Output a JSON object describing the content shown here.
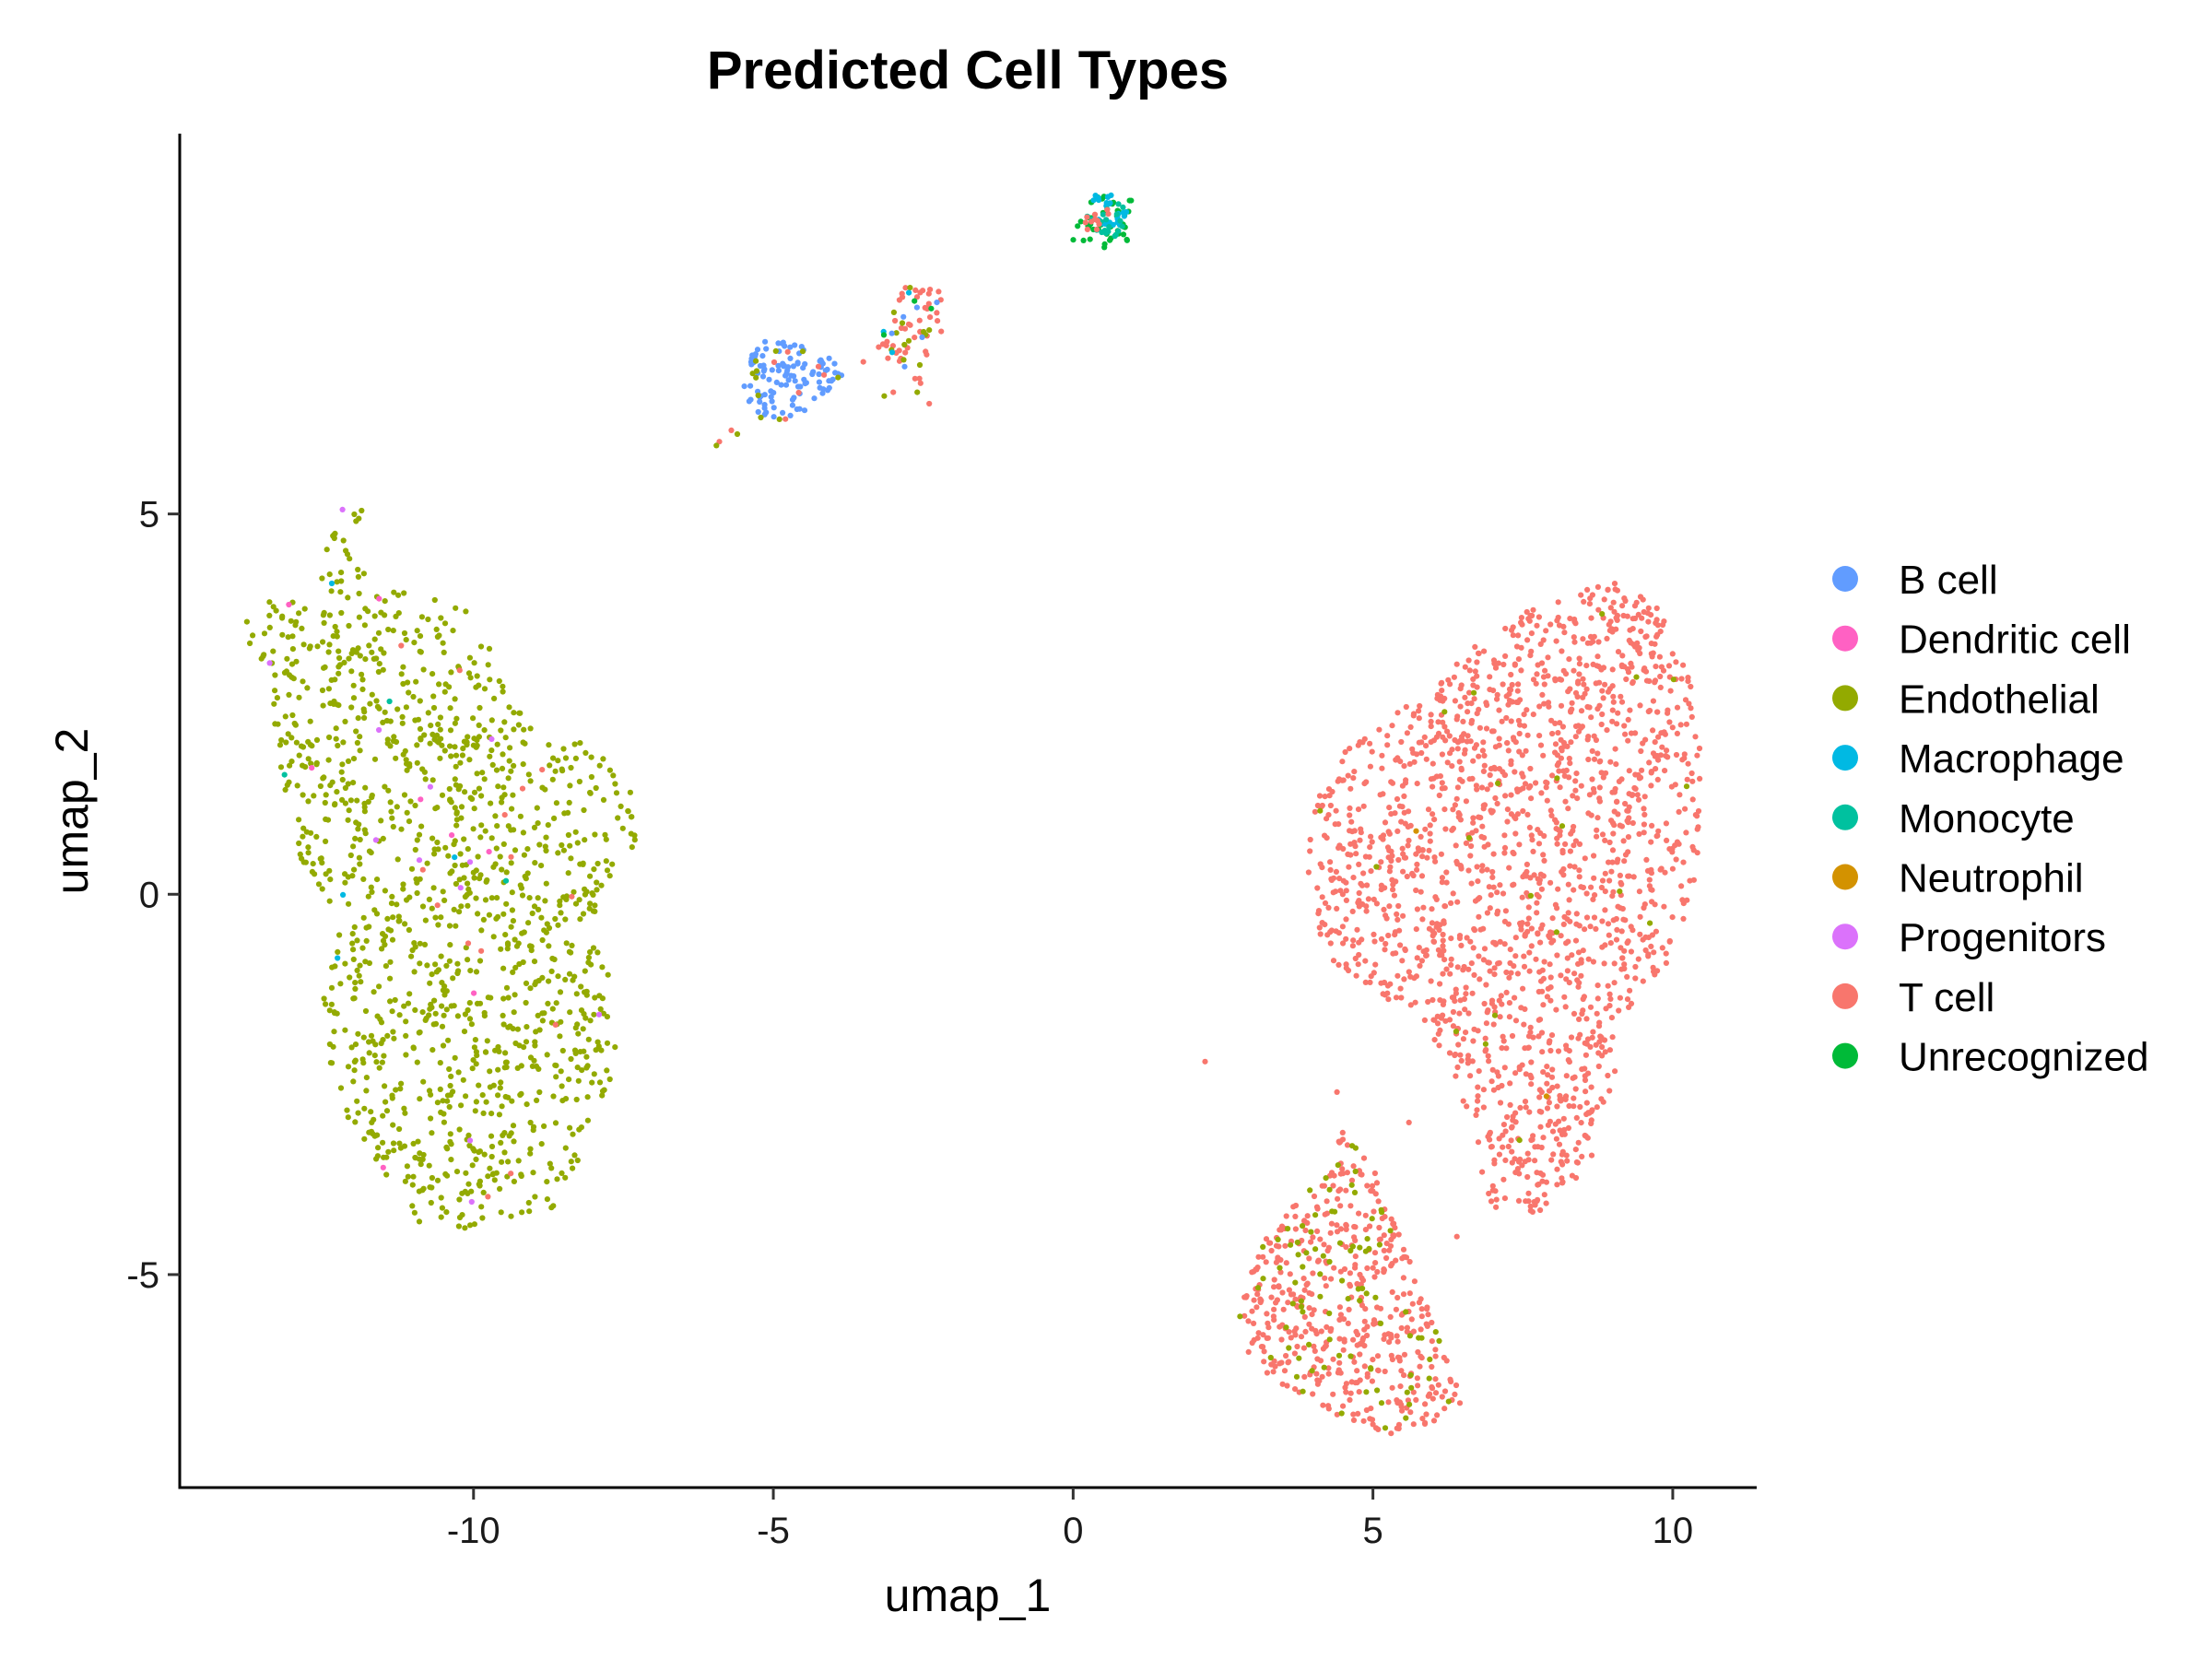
{
  "chart_data": {
    "type": "scatter",
    "title": "Predicted Cell Types",
    "xlabel": "umap_1",
    "ylabel": "umap_2",
    "xlim": [
      -14.9,
      11.4
    ],
    "ylim": [
      -7.8,
      10.0
    ],
    "x_ticks": [
      -10,
      -5,
      0,
      5,
      10
    ],
    "y_ticks": [
      -5,
      0,
      5
    ],
    "x_tick_labels": [
      "-10",
      "-5",
      "0",
      "5",
      "10"
    ],
    "y_tick_labels": [
      "-5",
      "0",
      "5"
    ],
    "grid": false,
    "legend_position": "right",
    "series": [
      {
        "name": "B cell",
        "color": "#619CFF"
      },
      {
        "name": "Dendritic cell",
        "color": "#FF61C3"
      },
      {
        "name": "Endothelial",
        "color": "#93AA00"
      },
      {
        "name": "Macrophage",
        "color": "#00B9E3"
      },
      {
        "name": "Monocyte",
        "color": "#00C19F"
      },
      {
        "name": "Neutrophil",
        "color": "#D39200"
      },
      {
        "name": "Progenitors",
        "color": "#DB72FB"
      },
      {
        "name": "T cell",
        "color": "#F8766D"
      },
      {
        "name": "Unrecognized",
        "color": "#00BA38"
      }
    ],
    "clusters": [
      {
        "series": "Endothelial",
        "n": 1300,
        "poly": [
          [
            -12.2,
            5.3
          ],
          [
            -11.8,
            5.1
          ],
          [
            -11.9,
            4.3
          ],
          [
            -11.4,
            4.0
          ],
          [
            -10.8,
            3.9
          ],
          [
            -10.1,
            3.8
          ],
          [
            -9.7,
            3.3
          ],
          [
            -9.3,
            2.5
          ],
          [
            -8.8,
            2.0
          ],
          [
            -8.0,
            2.0
          ],
          [
            -7.3,
            1.3
          ],
          [
            -7.3,
            0.6
          ],
          [
            -7.9,
            -0.1
          ],
          [
            -7.7,
            -1.0
          ],
          [
            -7.6,
            -2.2
          ],
          [
            -8.2,
            -3.4
          ],
          [
            -8.6,
            -4.1
          ],
          [
            -9.3,
            -4.3
          ],
          [
            -10.2,
            -4.4
          ],
          [
            -11.0,
            -4.3
          ],
          [
            -11.5,
            -3.8
          ],
          [
            -12.0,
            -3.2
          ],
          [
            -12.4,
            -2.2
          ],
          [
            -12.5,
            -1.4
          ],
          [
            -12.2,
            -0.3
          ],
          [
            -13.0,
            0.5
          ],
          [
            -13.2,
            1.4
          ],
          [
            -13.4,
            2.8
          ],
          [
            -13.9,
            3.4
          ],
          [
            -13.7,
            3.8
          ],
          [
            -13.0,
            3.9
          ],
          [
            -12.4,
            3.8
          ],
          [
            -12.6,
            4.3
          ]
        ]
      },
      {
        "series": "T cell",
        "n": 1750,
        "poly": [
          [
            8.5,
            4.1
          ],
          [
            9.4,
            4.1
          ],
          [
            10.0,
            3.5
          ],
          [
            10.4,
            2.5
          ],
          [
            10.5,
            1.3
          ],
          [
            10.4,
            0.2
          ],
          [
            10.0,
            -0.8
          ],
          [
            9.2,
            -1.6
          ],
          [
            9.0,
            -2.6
          ],
          [
            8.6,
            -3.6
          ],
          [
            7.8,
            -4.2
          ],
          [
            7.0,
            -4.2
          ],
          [
            6.7,
            -3.4
          ],
          [
            6.3,
            -2.3
          ],
          [
            5.8,
            -1.6
          ],
          [
            5.0,
            -1.3
          ],
          [
            4.2,
            -0.8
          ],
          [
            3.9,
            0.2
          ],
          [
            4.0,
            1.2
          ],
          [
            4.5,
            1.9
          ],
          [
            5.3,
            2.3
          ],
          [
            6.2,
            3.0
          ],
          [
            7.3,
            3.6
          ]
        ]
      },
      {
        "series": "T cell",
        "n": 480,
        "poly": [
          [
            4.5,
            -3.1
          ],
          [
            5.0,
            -3.5
          ],
          [
            5.4,
            -4.4
          ],
          [
            5.9,
            -5.4
          ],
          [
            6.2,
            -6.0
          ],
          [
            6.5,
            -6.7
          ],
          [
            6.0,
            -7.0
          ],
          [
            5.3,
            -7.1
          ],
          [
            4.5,
            -6.9
          ],
          [
            3.8,
            -6.6
          ],
          [
            3.0,
            -6.2
          ],
          [
            2.7,
            -5.7
          ],
          [
            2.9,
            -4.9
          ],
          [
            3.4,
            -4.3
          ],
          [
            4.0,
            -3.8
          ]
        ]
      },
      {
        "series": "B cell",
        "n": 110,
        "poly": [
          [
            -5.5,
            7.0
          ],
          [
            -5.1,
            7.3
          ],
          [
            -4.6,
            7.3
          ],
          [
            -4.1,
            7.1
          ],
          [
            -3.8,
            6.8
          ],
          [
            -4.2,
            6.5
          ],
          [
            -4.8,
            6.2
          ],
          [
            -5.2,
            6.2
          ],
          [
            -5.5,
            6.6
          ]
        ]
      },
      {
        "series": "T cell",
        "n": 45,
        "poly": [
          [
            -2.8,
            8.0
          ],
          [
            -2.3,
            8.2
          ],
          [
            -2.1,
            7.7
          ],
          [
            -2.5,
            6.9
          ],
          [
            -2.5,
            6.4
          ],
          [
            -3.0,
            6.9
          ],
          [
            -3.3,
            7.2
          ]
        ]
      },
      {
        "series": "Unrecognized",
        "n": 45,
        "poly": [
          [
            0.0,
            8.9
          ],
          [
            0.4,
            9.2
          ],
          [
            1.0,
            9.2
          ],
          [
            1.0,
            8.6
          ],
          [
            0.5,
            8.5
          ],
          [
            0.0,
            8.6
          ]
        ]
      },
      {
        "series": "Macrophage",
        "n": 25,
        "poly": [
          [
            0.3,
            9.2
          ],
          [
            0.9,
            9.2
          ],
          [
            0.9,
            8.8
          ],
          [
            0.4,
            8.8
          ]
        ]
      },
      {
        "series": "Monocyte",
        "n": 20,
        "poly": [
          [
            0.2,
            9.0
          ],
          [
            0.9,
            9.1
          ],
          [
            0.9,
            8.6
          ],
          [
            0.3,
            8.7
          ]
        ]
      },
      {
        "series": "T cell",
        "n": 12,
        "poly": [
          [
            0.2,
            9.0
          ],
          [
            0.7,
            9.0
          ],
          [
            0.6,
            8.7
          ],
          [
            0.2,
            8.7
          ]
        ]
      }
    ],
    "sprinkles": [
      {
        "series": "Endothelial",
        "in": 2,
        "n": 90
      },
      {
        "series": "Endothelial",
        "in": 1,
        "n": 20
      },
      {
        "series": "T cell",
        "in": 0,
        "n": 14
      },
      {
        "series": "Progenitors",
        "in": 0,
        "n": 12
      },
      {
        "series": "Dendritic cell",
        "in": 0,
        "n": 8
      },
      {
        "series": "Macrophage",
        "in": 0,
        "n": 4
      },
      {
        "series": "Monocyte",
        "in": 0,
        "n": 3
      },
      {
        "series": "Endothelial",
        "in": 3,
        "n": 10
      },
      {
        "series": "Endothelial",
        "in": 4,
        "n": 12
      },
      {
        "series": "B cell",
        "in": 4,
        "n": 6
      },
      {
        "series": "Macrophage",
        "in": 4,
        "n": 3
      },
      {
        "series": "Unrecognized",
        "in": 4,
        "n": 3
      },
      {
        "series": "T cell",
        "in": 3,
        "n": 6
      },
      {
        "series": "Neutrophil",
        "in": 1,
        "n": 2
      }
    ]
  }
}
